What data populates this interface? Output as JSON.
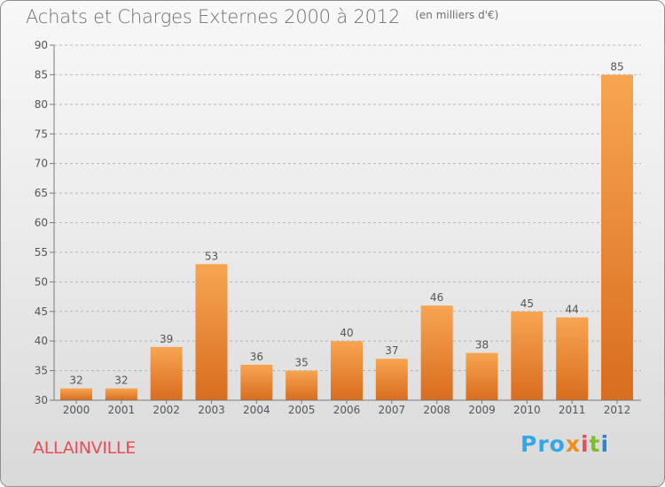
{
  "header": {
    "title": "Achats et Charges Externes 2000 à 2012",
    "unit": "(en milliers d'€)"
  },
  "location": "ALLAINVILLE",
  "brand": {
    "text": "Proxiti",
    "parts": [
      "Pro",
      "x",
      "i",
      "t",
      "i"
    ]
  },
  "colors": {
    "bar_top": "#f7a552",
    "bar_bottom": "#d86d1e",
    "axis": "#7a7a7a",
    "grid": "#8a8a8a",
    "text": "#555555",
    "location": "#ea4d55"
  },
  "chart_data": {
    "type": "bar",
    "categories": [
      "2000",
      "2001",
      "2002",
      "2003",
      "2004",
      "2005",
      "2006",
      "2007",
      "2008",
      "2009",
      "2010",
      "2011",
      "2012"
    ],
    "values": [
      32,
      32,
      39,
      53,
      36,
      35,
      40,
      37,
      46,
      38,
      45,
      44,
      85
    ],
    "data_labels": [
      "32",
      "32",
      "39",
      "53",
      "36",
      "35",
      "40",
      "37",
      "46",
      "38",
      "45",
      "44",
      "85"
    ],
    "yticks": [
      "30",
      "35",
      "40",
      "45",
      "50",
      "55",
      "60",
      "65",
      "70",
      "75",
      "80",
      "85",
      "90"
    ],
    "ylim": [
      30,
      90
    ],
    "grid": "horizontal dashed"
  }
}
